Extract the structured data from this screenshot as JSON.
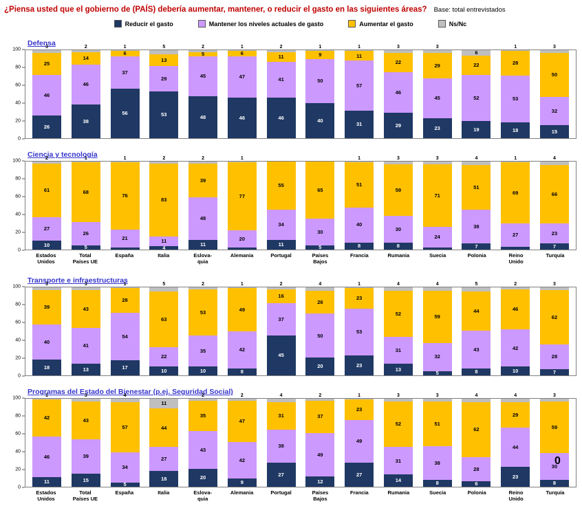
{
  "header": {
    "title": "¿Piensa usted que el gobierno de (PAÍS) debería aumentar, mantener, o reducir el gasto en las siguientes áreas?",
    "base_note": "Base: total entrevistados"
  },
  "legend": [
    {
      "label": "Reducir el gasto",
      "color": "#1F3864"
    },
    {
      "label": "Mantener los niveles actuales de gasto",
      "color": "#CC99FF"
    },
    {
      "label": "Aumentar el gasto",
      "color": "#FFC000"
    },
    {
      "label": "Ns/Nc",
      "color": "#BFBFBF"
    }
  ],
  "y_ticks": [
    100,
    80,
    60,
    40,
    20,
    0
  ],
  "countries": [
    "Estados\nUnidos",
    "Total\nPaíses UE",
    "España",
    "Italia",
    "Eslova-\nquia",
    "Alemania",
    "Portugal",
    "Países\nBajos",
    "Francia",
    "Rumania",
    "Suecia",
    "Polonia",
    "Reino\nUnido",
    "Turquía"
  ],
  "stray_zero": "0",
  "chart_data": [
    {
      "type": "bar",
      "stacked": true,
      "title": "Defensa",
      "unit": "%",
      "ylim": [
        0,
        100
      ],
      "legend_position": "top",
      "grid": false,
      "categories": [
        "Estados Unidos",
        "Total Países UE",
        "España",
        "Italia",
        "Eslovaquia",
        "Alemania",
        "Portugal",
        "Países Bajos",
        "Francia",
        "Rumania",
        "Suecia",
        "Polonia",
        "Reino Unido",
        "Turquía"
      ],
      "series": [
        {
          "name": "Reducir el gasto",
          "color": "#1F3864",
          "values": [
            26,
            38,
            56,
            53,
            48,
            46,
            46,
            40,
            31,
            29,
            23,
            19,
            18,
            15
          ]
        },
        {
          "name": "Mantener los niveles actuales de gasto",
          "color": "#CC99FF",
          "values": [
            46,
            46,
            37,
            29,
            45,
            47,
            41,
            50,
            57,
            46,
            45,
            52,
            53,
            32
          ]
        },
        {
          "name": "Aumentar el gasto",
          "color": "#FFC000",
          "values": [
            25,
            14,
            6,
            13,
            5,
            6,
            11,
            9,
            11,
            22,
            29,
            22,
            28,
            50
          ]
        },
        {
          "name": "Ns/Nc",
          "color": "#BFBFBF",
          "values": [
            3,
            2,
            1,
            5,
            2,
            1,
            2,
            1,
            1,
            3,
            3,
            6,
            1,
            3
          ]
        }
      ]
    },
    {
      "type": "bar",
      "stacked": true,
      "title": "Ciencia y tecnología",
      "unit": "%",
      "ylim": [
        0,
        100
      ],
      "grid": false,
      "categories": [
        "Estados Unidos",
        "Total Países UE",
        "España",
        "Italia",
        "Eslovaquia",
        "Alemania",
        "Portugal",
        "Países Bajos",
        "Francia",
        "Rumania",
        "Suecia",
        "Polonia",
        "Reino Unido",
        "Turquía"
      ],
      "series": [
        {
          "name": "Reducir el gasto",
          "color": "#1F3864",
          "values": [
            10,
            5,
            2,
            4,
            11,
            2,
            11,
            5,
            8,
            8,
            2,
            7,
            3,
            7
          ]
        },
        {
          "name": "Mantener los niveles actuales de gasto",
          "color": "#CC99FF",
          "values": [
            27,
            26,
            21,
            11,
            48,
            20,
            34,
            30,
            40,
            30,
            24,
            38,
            27,
            23
          ]
        },
        {
          "name": "Aumentar el gasto",
          "color": "#FFC000",
          "values": [
            61,
            68,
            76,
            83,
            39,
            77,
            55,
            65,
            51,
            59,
            71,
            51,
            69,
            66
          ]
        },
        {
          "name": "Ns/Nc",
          "color": "#BFBFBF",
          "values": [
            2,
            1,
            1,
            2,
            2,
            1,
            0,
            0,
            1,
            3,
            3,
            4,
            1,
            4
          ]
        }
      ]
    },
    {
      "type": "bar",
      "stacked": true,
      "title": "Transporte e infraestructuras",
      "unit": "%",
      "ylim": [
        0,
        100
      ],
      "grid": false,
      "categories": [
        "Estados Unidos",
        "Total Países UE",
        "España",
        "Italia",
        "Eslovaquia",
        "Alemania",
        "Portugal",
        "Países Bajos",
        "Francia",
        "Rumania",
        "Suecia",
        "Polonia",
        "Reino Unido",
        "Turquía"
      ],
      "series": [
        {
          "name": "Reducir el gasto",
          "color": "#1F3864",
          "values": [
            18,
            13,
            17,
            10,
            10,
            8,
            45,
            20,
            23,
            13,
            5,
            8,
            10,
            7
          ]
        },
        {
          "name": "Mantener los niveles actuales de gasto",
          "color": "#CC99FF",
          "values": [
            40,
            41,
            54,
            22,
            35,
            42,
            37,
            50,
            53,
            31,
            32,
            43,
            42,
            28
          ]
        },
        {
          "name": "Aumentar el gasto",
          "color": "#FFC000",
          "values": [
            39,
            43,
            28,
            63,
            53,
            49,
            16,
            26,
            23,
            52,
            59,
            44,
            46,
            62
          ]
        },
        {
          "name": "Ns/Nc",
          "color": "#BFBFBF",
          "values": [
            3,
            3,
            1,
            5,
            2,
            1,
            2,
            4,
            1,
            4,
            4,
            5,
            2,
            3
          ]
        }
      ]
    },
    {
      "type": "bar",
      "stacked": true,
      "title": "Programas del Estado del Bienestar (p.ej. Seguridad Social)",
      "unit": "%",
      "ylim": [
        0,
        100
      ],
      "grid": false,
      "categories": [
        "Estados Unidos",
        "Total Países UE",
        "España",
        "Italia",
        "Eslovaquia",
        "Alemania",
        "Portugal",
        "Países Bajos",
        "Francia",
        "Rumania",
        "Suecia",
        "Polonia",
        "Reino Unido",
        "Turquía"
      ],
      "series": [
        {
          "name": "Reducir el gasto",
          "color": "#1F3864",
          "values": [
            11,
            15,
            5,
            18,
            20,
            9,
            27,
            12,
            27,
            14,
            8,
            6,
            23,
            8
          ]
        },
        {
          "name": "Mantener los niveles actuales de gasto",
          "color": "#CC99FF",
          "values": [
            46,
            39,
            34,
            27,
            43,
            42,
            38,
            49,
            49,
            31,
            38,
            28,
            44,
            30
          ]
        },
        {
          "name": "Aumentar el gasto",
          "color": "#FFC000",
          "values": [
            42,
            43,
            57,
            44,
            35,
            47,
            31,
            37,
            23,
            52,
            51,
            62,
            29,
            59
          ]
        },
        {
          "name": "Ns/Nc",
          "color": "#BFBFBF",
          "values": [
            1,
            3,
            4,
            11,
            2,
            2,
            4,
            2,
            1,
            3,
            3,
            4,
            4,
            3
          ]
        }
      ]
    }
  ]
}
